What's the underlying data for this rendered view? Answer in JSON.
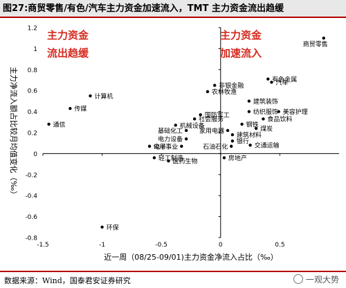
{
  "header": {
    "title": "图27:商贸零售/有色/汽车主力资金加速流入，TMT 主力资金流出趋缓"
  },
  "footer": {
    "source": "数据来源：Wind，国泰君安证券研究",
    "watermark": "一观大势"
  },
  "chart_data": {
    "type": "scatter",
    "title": "图27:商贸零售/有色/汽车主力资金加速流入，TMT 主力资金流出趋缓",
    "xlabel": "近一周（08/25-09/01)主力资金净流入占比（‰）",
    "ylabel": "主力净流入额占比较月均值变化（‰）",
    "xlim": [
      -1.5,
      1.0
    ],
    "ylim": [
      -0.8,
      1.2
    ],
    "xticks": [
      -1.5,
      -1.0,
      -0.5,
      0.0,
      0.5
    ],
    "xtick_labels": [
      "-1.5",
      "-1",
      "-0.5",
      "0",
      "0.5"
    ],
    "yticks": [
      -0.8,
      -0.6,
      -0.4,
      -0.2,
      0.0,
      0.2,
      0.4,
      0.6,
      0.8,
      1.0,
      1.2
    ],
    "ytick_labels": [
      "-0.8",
      "-0.6",
      "-0.4",
      "-0.2",
      "0",
      "0.2",
      "0.4",
      "0.6",
      "0.8",
      "1",
      "1.2"
    ],
    "grid": false,
    "annotations": [
      {
        "line1": "主力资金",
        "line2": "流出趋缓",
        "color": "#d62a1e"
      },
      {
        "line1": "主力资金",
        "line2": "加速流入",
        "color": "#d62a1e"
      }
    ],
    "points": [
      {
        "label": "商贸零售",
        "x": 0.87,
        "y": 1.1,
        "anchor": "below"
      },
      {
        "label": "有色金属",
        "x": 0.4,
        "y": 0.71,
        "anchor": "right"
      },
      {
        "label": "汽车",
        "x": 0.43,
        "y": 0.68,
        "anchor": "right"
      },
      {
        "label": "非银金融",
        "x": -0.05,
        "y": 0.65,
        "anchor": "right"
      },
      {
        "label": "农林牧渔",
        "x": -0.11,
        "y": 0.59,
        "anchor": "right"
      },
      {
        "label": "计算机",
        "x": -1.1,
        "y": 0.55,
        "anchor": "right"
      },
      {
        "label": "建筑装饰",
        "x": 0.24,
        "y": 0.5,
        "anchor": "right"
      },
      {
        "label": "传媒",
        "x": -1.27,
        "y": 0.43,
        "anchor": "right"
      },
      {
        "label": "纺织服饰",
        "x": 0.24,
        "y": 0.4,
        "anchor": "right"
      },
      {
        "label": "美容护理",
        "x": 0.49,
        "y": 0.4,
        "anchor": "right"
      },
      {
        "label": "国防军工",
        "x": -0.17,
        "y": 0.37,
        "anchor": "right"
      },
      {
        "label": "社会服务",
        "x": -0.22,
        "y": 0.33,
        "anchor": "right"
      },
      {
        "label": "食品饮料",
        "x": 0.36,
        "y": 0.33,
        "anchor": "right"
      },
      {
        "label": "钢铁",
        "x": 0.18,
        "y": 0.28,
        "anchor": "right"
      },
      {
        "label": "通信",
        "x": -1.45,
        "y": 0.28,
        "anchor": "right"
      },
      {
        "label": "机械设备",
        "x": -0.38,
        "y": 0.27,
        "anchor": "right"
      },
      {
        "label": "煤炭",
        "x": 0.3,
        "y": 0.24,
        "anchor": "right"
      },
      {
        "label": "基础化工",
        "x": -0.29,
        "y": 0.22,
        "anchor": "left"
      },
      {
        "label": "家用电器",
        "x": 0.06,
        "y": 0.22,
        "anchor": "left"
      },
      {
        "label": "建筑材料",
        "x": 0.1,
        "y": 0.18,
        "anchor": "right"
      },
      {
        "label": "电力设备",
        "x": -0.29,
        "y": 0.14,
        "anchor": "left"
      },
      {
        "label": "银行",
        "x": 0.1,
        "y": 0.12,
        "anchor": "right"
      },
      {
        "label": "交通运输",
        "x": 0.25,
        "y": 0.08,
        "anchor": "right"
      },
      {
        "label": "电子",
        "x": -0.6,
        "y": 0.07,
        "anchor": "right"
      },
      {
        "label": "公用事业",
        "x": -0.33,
        "y": 0.07,
        "anchor": "left"
      },
      {
        "label": "石油石化",
        "x": 0.09,
        "y": 0.07,
        "anchor": "left"
      },
      {
        "label": "轻工制造",
        "x": -0.56,
        "y": -0.04,
        "anchor": "right"
      },
      {
        "label": "房地产",
        "x": 0.03,
        "y": -0.04,
        "anchor": "right"
      },
      {
        "label": "医药生物",
        "x": -0.44,
        "y": -0.07,
        "anchor": "right"
      },
      {
        "label": "环保",
        "x": -1.0,
        "y": -0.7,
        "anchor": "right"
      }
    ]
  }
}
